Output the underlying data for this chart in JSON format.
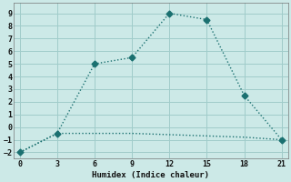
{
  "line1_x": [
    0,
    3,
    6,
    9,
    12,
    15,
    18,
    21
  ],
  "line1_y": [
    -2,
    -0.5,
    5,
    5.5,
    9,
    8.5,
    2.5,
    -1
  ],
  "line2_x": [
    0,
    3,
    6,
    9,
    12,
    15,
    18,
    21
  ],
  "line2_y": [
    -2,
    -0.5,
    -0.5,
    -0.5,
    -0.6,
    -0.7,
    -0.8,
    -1.0
  ],
  "line_color": "#1a7070",
  "bg_color": "#cce9e7",
  "grid_color": "#a0ccca",
  "xlabel": "Humidex (Indice chaleur)",
  "ylim": [
    -2.5,
    9.8
  ],
  "xlim": [
    -0.5,
    21.5
  ],
  "yticks": [
    -2,
    -1,
    0,
    1,
    2,
    3,
    4,
    5,
    6,
    7,
    8,
    9
  ],
  "xticks": [
    0,
    3,
    6,
    9,
    12,
    15,
    18,
    21
  ],
  "markersize": 3.5,
  "linewidth": 1.0
}
